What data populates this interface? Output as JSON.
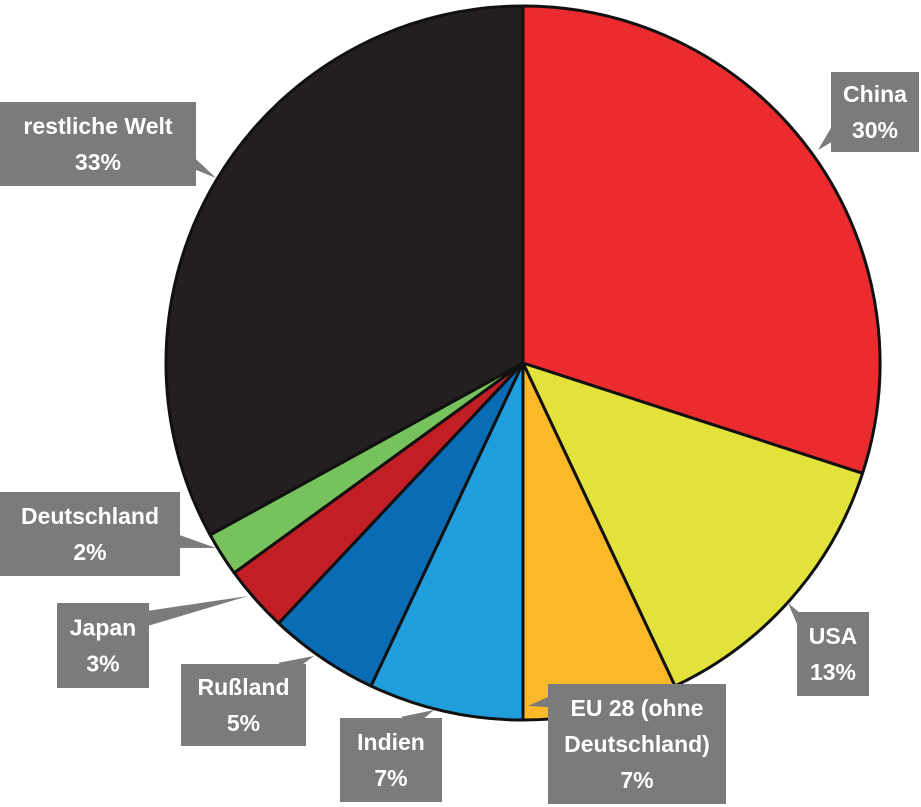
{
  "chart_data": {
    "type": "pie",
    "slices": [
      {
        "label_lines": [
          "China"
        ],
        "pct_label": "30%",
        "value": 30,
        "color": "#EC2B2E"
      },
      {
        "label_lines": [
          "USA"
        ],
        "pct_label": "13%",
        "value": 13,
        "color": "#E3E23B"
      },
      {
        "label_lines": [
          "EU 28 (ohne",
          "Deutschland)"
        ],
        "pct_label": "7%",
        "value": 7,
        "color": "#FBB92A"
      },
      {
        "label_lines": [
          "Indien"
        ],
        "pct_label": "7%",
        "value": 7,
        "color": "#1F9EDB"
      },
      {
        "label_lines": [
          "Rußland"
        ],
        "pct_label": "5%",
        "value": 5,
        "color": "#0A6CB4"
      },
      {
        "label_lines": [
          "Japan"
        ],
        "pct_label": "3%",
        "value": 3,
        "color": "#C11E26"
      },
      {
        "label_lines": [
          "Deutschland"
        ],
        "pct_label": "2%",
        "value": 2,
        "color": "#76C25C"
      },
      {
        "label_lines": [
          "restliche Welt"
        ],
        "pct_label": "33%",
        "value": 33,
        "color": "#231F20"
      }
    ],
    "label_box_color": "#7A7B7D",
    "start": "12 o'clock",
    "direction": "clockwise"
  }
}
